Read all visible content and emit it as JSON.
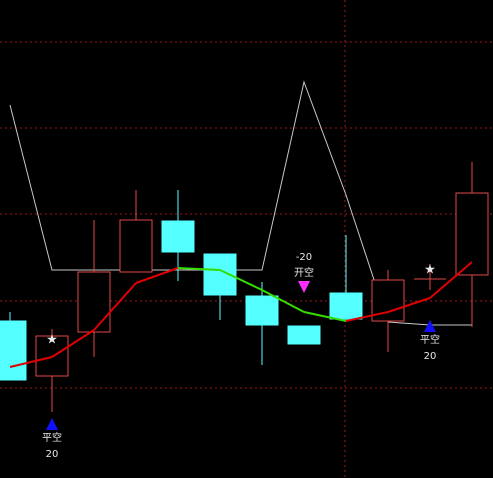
{
  "chart_data": {
    "type": "candlestick",
    "ylim": [
      0,
      478
    ],
    "grid_y": [
      436,
      350,
      264,
      177,
      90
    ],
    "candles": [
      {
        "open": 157,
        "close": 98,
        "high": 166,
        "low": 98
      },
      {
        "open": 102,
        "close": 142,
        "high": 149,
        "low": 66
      },
      {
        "open": 146,
        "close": 206,
        "high": 258,
        "low": 121
      },
      {
        "open": 206,
        "close": 258,
        "high": 288,
        "low": 206
      },
      {
        "open": 257,
        "close": 226,
        "high": 288,
        "low": 197
      },
      {
        "open": 224,
        "close": 183,
        "high": 224,
        "low": 158
      },
      {
        "open": 182,
        "close": 153,
        "high": 196,
        "low": 113
      },
      {
        "open": 152,
        "close": 134,
        "high": 152,
        "low": 134
      },
      {
        "open": 185,
        "close": 159,
        "high": 243,
        "low": 158
      },
      {
        "open": 157,
        "close": 198,
        "high": 208,
        "low": 126
      },
      {
        "open": 199,
        "close": 199,
        "high": 214,
        "low": 188
      },
      {
        "open": 203,
        "close": 285,
        "high": 316,
        "low": 151
      }
    ],
    "up_color": "#e04848",
    "down_color": "#54ffff",
    "ma": {
      "values": [
        111,
        121,
        148,
        195,
        210,
        208,
        188,
        166,
        157,
        166,
        180,
        216
      ],
      "up_color": "#e00000",
      "down_color": "#33dd00"
    },
    "line": {
      "values": [
        373,
        208,
        208,
        208,
        208,
        208,
        208,
        396,
        283,
        156,
        153,
        153
      ],
      "color": "#c8c8c8"
    },
    "signals": [
      {
        "index": 1,
        "label": "平空",
        "qty": 20,
        "at": 54,
        "dir": "up",
        "color": "#1010ff"
      },
      {
        "index": 7,
        "label": "开空",
        "qty": -20,
        "at": 191,
        "dir": "down",
        "color": "#ff30ff"
      },
      {
        "index": 10,
        "label": "平空",
        "qty": 20,
        "at": 152,
        "dir": "up",
        "color": "#1010ff"
      }
    ],
    "stars": [
      {
        "index": 1,
        "at": 138
      },
      {
        "index": 10,
        "at": 208
      }
    ],
    "star_color": "#33ee33"
  }
}
